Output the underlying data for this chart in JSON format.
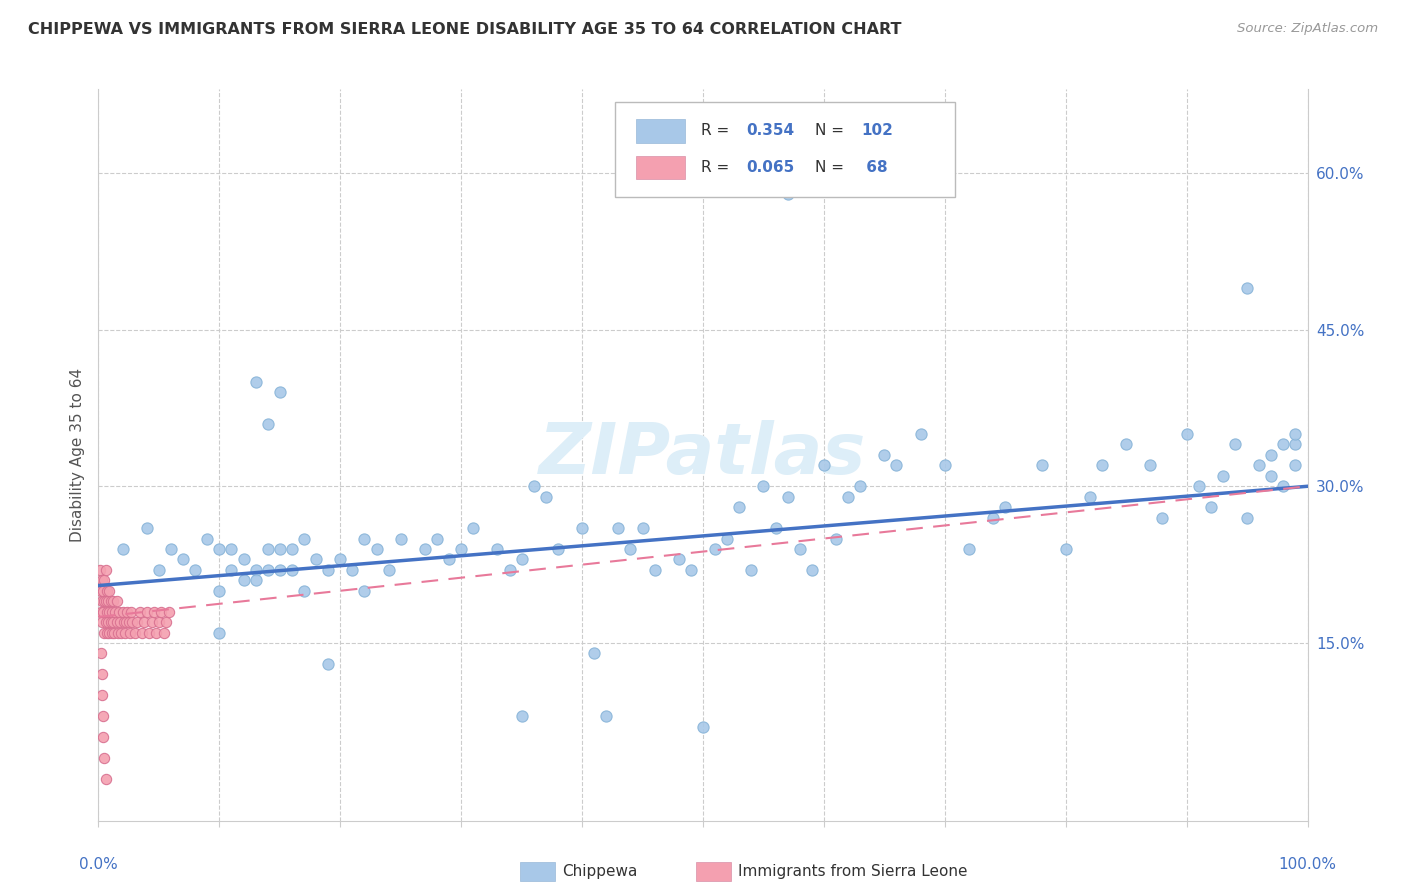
{
  "title": "CHIPPEWA VS IMMIGRANTS FROM SIERRA LEONE DISABILITY AGE 35 TO 64 CORRELATION CHART",
  "source": "Source: ZipAtlas.com",
  "ylabel": "Disability Age 35 to 64",
  "xlim": [
    0.0,
    1.0
  ],
  "ylim": [
    -0.02,
    0.68
  ],
  "color_blue": "#a8c8e8",
  "color_pink": "#f4a0b0",
  "line_blue": "#4472c4",
  "line_pink": "#e8799a",
  "chip_line_y0": 0.205,
  "chip_line_y1": 0.3,
  "sl_line_y0": 0.175,
  "sl_line_y1": 0.3,
  "chippewa_x": [
    0.02,
    0.04,
    0.05,
    0.06,
    0.07,
    0.08,
    0.09,
    0.1,
    0.1,
    0.11,
    0.11,
    0.12,
    0.12,
    0.13,
    0.13,
    0.14,
    0.14,
    0.15,
    0.15,
    0.16,
    0.17,
    0.18,
    0.19,
    0.2,
    0.21,
    0.22,
    0.23,
    0.24,
    0.25,
    0.27,
    0.28,
    0.29,
    0.3,
    0.31,
    0.33,
    0.34,
    0.35,
    0.36,
    0.37,
    0.38,
    0.4,
    0.41,
    0.43,
    0.44,
    0.45,
    0.46,
    0.48,
    0.49,
    0.5,
    0.51,
    0.52,
    0.53,
    0.54,
    0.55,
    0.56,
    0.57,
    0.58,
    0.59,
    0.6,
    0.61,
    0.62,
    0.63,
    0.65,
    0.66,
    0.68,
    0.7,
    0.72,
    0.74,
    0.75,
    0.78,
    0.8,
    0.82,
    0.83,
    0.85,
    0.87,
    0.88,
    0.9,
    0.91,
    0.92,
    0.93,
    0.94,
    0.95,
    0.96,
    0.97,
    0.97,
    0.98,
    0.98,
    0.99,
    0.99,
    0.99,
    0.57,
    0.95,
    0.1,
    0.13,
    0.14,
    0.15,
    0.16,
    0.17,
    0.19,
    0.22,
    0.35,
    0.42
  ],
  "chippewa_y": [
    0.24,
    0.26,
    0.22,
    0.24,
    0.23,
    0.22,
    0.25,
    0.2,
    0.24,
    0.22,
    0.24,
    0.21,
    0.23,
    0.22,
    0.4,
    0.24,
    0.36,
    0.24,
    0.39,
    0.24,
    0.25,
    0.23,
    0.22,
    0.23,
    0.22,
    0.25,
    0.24,
    0.22,
    0.25,
    0.24,
    0.25,
    0.23,
    0.24,
    0.26,
    0.24,
    0.22,
    0.23,
    0.3,
    0.29,
    0.24,
    0.26,
    0.14,
    0.26,
    0.24,
    0.26,
    0.22,
    0.23,
    0.22,
    0.07,
    0.24,
    0.25,
    0.28,
    0.22,
    0.3,
    0.26,
    0.29,
    0.24,
    0.22,
    0.32,
    0.25,
    0.29,
    0.3,
    0.33,
    0.32,
    0.35,
    0.32,
    0.24,
    0.27,
    0.28,
    0.32,
    0.24,
    0.29,
    0.32,
    0.34,
    0.32,
    0.27,
    0.35,
    0.3,
    0.28,
    0.31,
    0.34,
    0.27,
    0.32,
    0.31,
    0.33,
    0.34,
    0.3,
    0.34,
    0.32,
    0.35,
    0.58,
    0.49,
    0.16,
    0.21,
    0.22,
    0.22,
    0.22,
    0.2,
    0.13,
    0.2,
    0.08,
    0.08
  ],
  "sierra_x": [
    0.001,
    0.002,
    0.002,
    0.003,
    0.003,
    0.003,
    0.004,
    0.004,
    0.005,
    0.005,
    0.005,
    0.006,
    0.006,
    0.006,
    0.007,
    0.007,
    0.007,
    0.008,
    0.008,
    0.009,
    0.009,
    0.009,
    0.01,
    0.01,
    0.011,
    0.011,
    0.012,
    0.012,
    0.013,
    0.014,
    0.015,
    0.015,
    0.016,
    0.017,
    0.018,
    0.019,
    0.02,
    0.021,
    0.022,
    0.023,
    0.024,
    0.025,
    0.026,
    0.027,
    0.028,
    0.03,
    0.032,
    0.034,
    0.036,
    0.038,
    0.04,
    0.042,
    0.044,
    0.046,
    0.048,
    0.05,
    0.052,
    0.054,
    0.056,
    0.058,
    0.002,
    0.003,
    0.003,
    0.004,
    0.004,
    0.005,
    0.006
  ],
  "sierra_y": [
    0.22,
    0.2,
    0.18,
    0.17,
    0.19,
    0.21,
    0.18,
    0.2,
    0.16,
    0.19,
    0.21,
    0.17,
    0.19,
    0.22,
    0.16,
    0.18,
    0.2,
    0.17,
    0.19,
    0.16,
    0.18,
    0.2,
    0.17,
    0.19,
    0.16,
    0.18,
    0.17,
    0.19,
    0.16,
    0.18,
    0.17,
    0.19,
    0.16,
    0.18,
    0.17,
    0.16,
    0.18,
    0.17,
    0.16,
    0.17,
    0.18,
    0.17,
    0.16,
    0.18,
    0.17,
    0.16,
    0.17,
    0.18,
    0.16,
    0.17,
    0.18,
    0.16,
    0.17,
    0.18,
    0.16,
    0.17,
    0.18,
    0.16,
    0.17,
    0.18,
    0.14,
    0.12,
    0.1,
    0.08,
    0.06,
    0.04,
    0.02
  ],
  "ytick_positions": [
    0.15,
    0.3,
    0.45,
    0.6
  ],
  "ytick_labels": [
    "15.0%",
    "30.0%",
    "45.0%",
    "60.0%"
  ]
}
